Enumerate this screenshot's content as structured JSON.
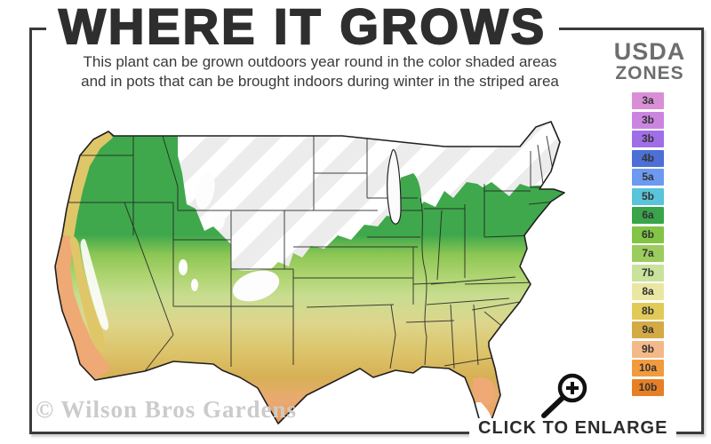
{
  "header": {
    "title": "WHERE IT GROWS",
    "subtitle_line1": "This plant can be grown outdoors year round in the color shaded areas",
    "subtitle_line2": "and in pots that can be brought indoors during winter in the striped area"
  },
  "legend": {
    "title_line1": "USDA",
    "title_line2": "ZONES",
    "zones": [
      {
        "label": "3a",
        "color": "#d98fd6"
      },
      {
        "label": "3b",
        "color": "#cb85e0"
      },
      {
        "label": "3b",
        "color": "#9f6fe8"
      },
      {
        "label": "4b",
        "color": "#4d70d6"
      },
      {
        "label": "5a",
        "color": "#6d9af0"
      },
      {
        "label": "5b",
        "color": "#59c4da"
      },
      {
        "label": "6a",
        "color": "#3aa44a"
      },
      {
        "label": "6b",
        "color": "#82c445"
      },
      {
        "label": "7a",
        "color": "#9ccc5e"
      },
      {
        "label": "7b",
        "color": "#c9e39c"
      },
      {
        "label": "8a",
        "color": "#ebe6a3"
      },
      {
        "label": "8b",
        "color": "#e2ca58"
      },
      {
        "label": "9a",
        "color": "#d4aa45"
      },
      {
        "label": "9b",
        "color": "#f4b988"
      },
      {
        "label": "10a",
        "color": "#f29b3e"
      },
      {
        "label": "10b",
        "color": "#e67f26"
      }
    ]
  },
  "map": {
    "description": "united-states-usda-zone-map",
    "palette": {
      "white": "#ffffff",
      "stripe": "#ececec",
      "green_6a": "#3fa84c",
      "green_6b": "#8cc654",
      "green_7a": "#abd36e",
      "green_7b": "#c8dd90",
      "gold_8a": "#ddd68c",
      "gold_8b": "#dcc46a",
      "gold_9a": "#d7b055",
      "peach_9b": "#eaaa72",
      "orange_10": "#ef9850",
      "coast_gold": "#dfc668",
      "coast_peach": "#efa975",
      "outline": "#222222"
    }
  },
  "footer": {
    "watermark": "© Wilson Bros Gardens",
    "enlarge_label": "CLICK TO ENLARGE"
  },
  "frame_color": "#3a3a3a"
}
